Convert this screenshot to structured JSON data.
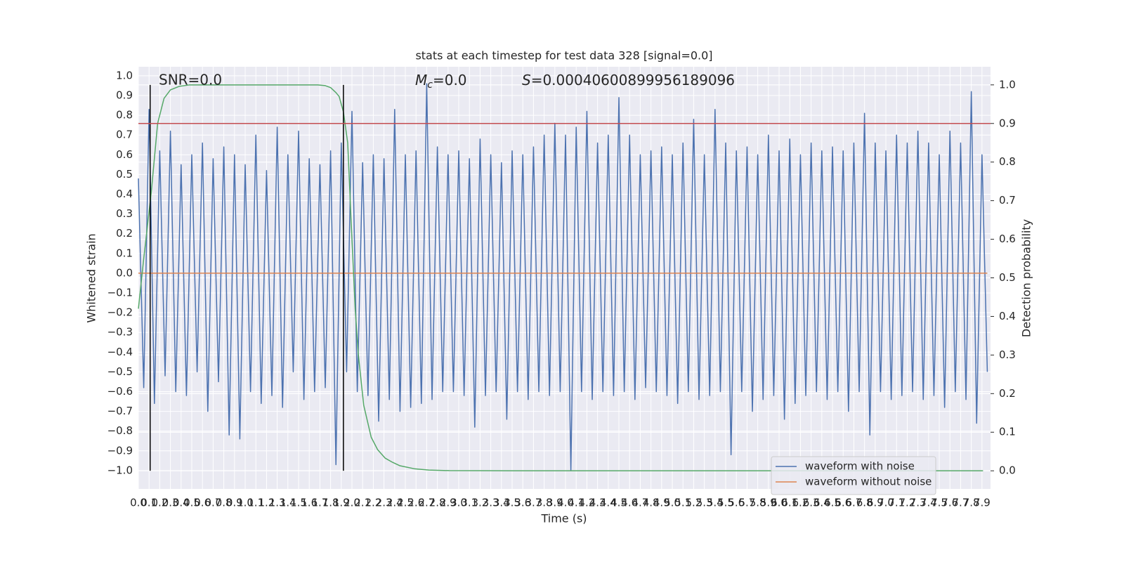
{
  "chart_data": {
    "type": "line",
    "title": "stats at each timestep for test data 328 [signal=0.0]",
    "xlabel": "Time (s)",
    "ylabel": "Whitened strain",
    "y2label": "Detection probability",
    "annotations": [
      {
        "text": "SNR=0.0"
      },
      {
        "symbol": "M",
        "subscript": "c",
        "text": "=0.0"
      },
      {
        "symbol": "S",
        "text": "=0.00040600899956189096"
      }
    ],
    "xlim": [
      0,
      7.98
    ],
    "ylim": [
      -1.093,
      1.046
    ],
    "y2lim": [
      -0.047,
      1.047
    ],
    "xticks": [
      {
        "value": 0,
        "label": "0.0"
      },
      {
        "value": 0.1,
        "label": "0.1"
      },
      {
        "value": 0.2,
        "label": "0.2"
      },
      {
        "value": 0.3,
        "label": "0.3"
      },
      {
        "value": 0.4,
        "label": "0.4"
      },
      {
        "value": 0.5,
        "label": "0.5"
      },
      {
        "value": 0.6,
        "label": "0.6"
      },
      {
        "value": 0.7,
        "label": "0.7"
      },
      {
        "value": 0.8,
        "label": "0.8"
      },
      {
        "value": 0.9,
        "label": "0.9"
      },
      {
        "value": 1,
        "label": "1.0"
      },
      {
        "value": 1.1,
        "label": "1.1"
      },
      {
        "value": 1.2,
        "label": "1.2"
      },
      {
        "value": 1.3,
        "label": "1.3"
      },
      {
        "value": 1.4,
        "label": "1.4"
      },
      {
        "value": 1.5,
        "label": "1.5"
      },
      {
        "value": 1.6,
        "label": "1.6"
      },
      {
        "value": 1.7,
        "label": "1.7"
      },
      {
        "value": 1.8,
        "label": "1.8"
      },
      {
        "value": 1.9,
        "label": "1.9"
      },
      {
        "value": 2,
        "label": "2.0"
      },
      {
        "value": 2.1,
        "label": "2.1"
      },
      {
        "value": 2.2,
        "label": "2.2"
      },
      {
        "value": 2.3,
        "label": "2.3"
      },
      {
        "value": 2.4,
        "label": "2.4"
      },
      {
        "value": 2.5,
        "label": "2.5"
      },
      {
        "value": 2.6,
        "label": "2.6"
      },
      {
        "value": 2.7,
        "label": "2.7"
      },
      {
        "value": 2.8,
        "label": "2.8"
      },
      {
        "value": 2.9,
        "label": "2.9"
      },
      {
        "value": 3,
        "label": "3.0"
      },
      {
        "value": 3.1,
        "label": "3.1"
      },
      {
        "value": 3.2,
        "label": "3.2"
      },
      {
        "value": 3.3,
        "label": "3.3"
      },
      {
        "value": 3.4,
        "label": "3.4"
      },
      {
        "value": 3.5,
        "label": "3.5"
      },
      {
        "value": 3.6,
        "label": "3.6"
      },
      {
        "value": 3.7,
        "label": "3.7"
      },
      {
        "value": 3.8,
        "label": "3.8"
      },
      {
        "value": 3.9,
        "label": "3.9"
      },
      {
        "value": 4,
        "label": "4.0"
      },
      {
        "value": 4.1,
        "label": "4.1"
      },
      {
        "value": 4.2,
        "label": "4.2"
      },
      {
        "value": 4.3,
        "label": "4.3"
      },
      {
        "value": 4.4,
        "label": "4.4"
      },
      {
        "value": 4.5,
        "label": "4.5"
      },
      {
        "value": 4.6,
        "label": "4.6"
      },
      {
        "value": 4.7,
        "label": "4.7"
      },
      {
        "value": 4.8,
        "label": "4.8"
      },
      {
        "value": 4.9,
        "label": "4.9"
      },
      {
        "value": 5,
        "label": "5.0"
      },
      {
        "value": 5.1,
        "label": "5.1"
      },
      {
        "value": 5.2,
        "label": "5.2"
      },
      {
        "value": 5.3,
        "label": "5.3"
      },
      {
        "value": 5.4,
        "label": "5.4"
      },
      {
        "value": 5.5,
        "label": "5.5"
      },
      {
        "value": 5.6,
        "label": "5.6"
      },
      {
        "value": 5.7,
        "label": "5.7"
      },
      {
        "value": 5.8,
        "label": "5.8"
      },
      {
        "value": 5.9,
        "label": "5.9"
      },
      {
        "value": 6,
        "label": "6.0"
      },
      {
        "value": 6.1,
        "label": "6.1"
      },
      {
        "value": 6.2,
        "label": "6.2"
      },
      {
        "value": 6.3,
        "label": "6.3"
      },
      {
        "value": 6.4,
        "label": "6.4"
      },
      {
        "value": 6.5,
        "label": "6.5"
      },
      {
        "value": 6.6,
        "label": "6.6"
      },
      {
        "value": 6.7,
        "label": "6.7"
      },
      {
        "value": 6.8,
        "label": "6.8"
      },
      {
        "value": 6.9,
        "label": "6.9"
      },
      {
        "value": 7,
        "label": "7.0"
      },
      {
        "value": 7.1,
        "label": "7.1"
      },
      {
        "value": 7.2,
        "label": "7.2"
      },
      {
        "value": 7.3,
        "label": "7.3"
      },
      {
        "value": 7.4,
        "label": "7.4"
      },
      {
        "value": 7.5,
        "label": "7.5"
      },
      {
        "value": 7.6,
        "label": "7.6"
      },
      {
        "value": 7.7,
        "label": "7.7"
      },
      {
        "value": 7.8,
        "label": "7.8"
      },
      {
        "value": 7.9,
        "label": "7.9"
      }
    ],
    "yticks": [
      {
        "value": -1,
        "label": "−1.0"
      },
      {
        "value": -0.9,
        "label": "−0.9"
      },
      {
        "value": -0.8,
        "label": "−0.8"
      },
      {
        "value": -0.7,
        "label": "−0.7"
      },
      {
        "value": -0.6,
        "label": "−0.6"
      },
      {
        "value": -0.5,
        "label": "−0.5"
      },
      {
        "value": -0.4,
        "label": "−0.4"
      },
      {
        "value": -0.3,
        "label": "−0.3"
      },
      {
        "value": -0.2,
        "label": "−0.2"
      },
      {
        "value": -0.1,
        "label": "−0.1"
      },
      {
        "value": 0,
        "label": "0.0"
      },
      {
        "value": 0.1,
        "label": "0.1"
      },
      {
        "value": 0.2,
        "label": "0.2"
      },
      {
        "value": 0.3,
        "label": "0.3"
      },
      {
        "value": 0.4,
        "label": "0.4"
      },
      {
        "value": 0.5,
        "label": "0.5"
      },
      {
        "value": 0.6,
        "label": "0.6"
      },
      {
        "value": 0.7,
        "label": "0.7"
      },
      {
        "value": 0.8,
        "label": "0.8"
      },
      {
        "value": 0.9,
        "label": "0.9"
      },
      {
        "value": 1,
        "label": "1.0"
      }
    ],
    "y2ticks": [
      {
        "value": 0,
        "label": "0.0"
      },
      {
        "value": 0.1,
        "label": "0.1"
      },
      {
        "value": 0.2,
        "label": "0.2"
      },
      {
        "value": 0.3,
        "label": "0.3"
      },
      {
        "value": 0.4,
        "label": "0.4"
      },
      {
        "value": 0.5,
        "label": "0.5"
      },
      {
        "value": 0.6,
        "label": "0.6"
      },
      {
        "value": 0.7,
        "label": "0.7"
      },
      {
        "value": 0.8,
        "label": "0.8"
      },
      {
        "value": 0.9,
        "label": "0.9"
      },
      {
        "value": 1,
        "label": "1.0"
      }
    ],
    "grid": true,
    "legend": "lower right",
    "series": [
      {
        "name": "waveform with noise",
        "color": "#4c72b0",
        "x": [
          0,
          0.05,
          0.1,
          0.15,
          0.2,
          0.25,
          0.3,
          0.35,
          0.4,
          0.45,
          0.5,
          0.55,
          0.6,
          0.65,
          0.7,
          0.75,
          0.8,
          0.85,
          0.9,
          0.95,
          1,
          1.05,
          1.1,
          1.15,
          1.2,
          1.25,
          1.3,
          1.35,
          1.4,
          1.45,
          1.5,
          1.55,
          1.6,
          1.65,
          1.7,
          1.75,
          1.8,
          1.85,
          1.9,
          1.95,
          2,
          2.05,
          2.1,
          2.15,
          2.2,
          2.25,
          2.3,
          2.35,
          2.4,
          2.45,
          2.5,
          2.55,
          2.6,
          2.65,
          2.7,
          2.75,
          2.8,
          2.85,
          2.9,
          2.95,
          3,
          3.05,
          3.1,
          3.15,
          3.2,
          3.25,
          3.3,
          3.35,
          3.4,
          3.45,
          3.5,
          3.55,
          3.6,
          3.65,
          3.7,
          3.75,
          3.8,
          3.85,
          3.9,
          3.95,
          4,
          4.05,
          4.1,
          4.15,
          4.2,
          4.25,
          4.3,
          4.35,
          4.4,
          4.45,
          4.5,
          4.55,
          4.6,
          4.65,
          4.7,
          4.75,
          4.8,
          4.85,
          4.9,
          4.95,
          5,
          5.05,
          5.1,
          5.15,
          5.2,
          5.25,
          5.3,
          5.35,
          5.4,
          5.45,
          5.5,
          5.55,
          5.6,
          5.65,
          5.7,
          5.75,
          5.8,
          5.85,
          5.9,
          5.95,
          6,
          6.05,
          6.1,
          6.15,
          6.2,
          6.25,
          6.3,
          6.35,
          6.4,
          6.45,
          6.5,
          6.55,
          6.6,
          6.65,
          6.7,
          6.75,
          6.8,
          6.85,
          6.9,
          6.95,
          7,
          7.05,
          7.1,
          7.15,
          7.2,
          7.25,
          7.3,
          7.35,
          7.4,
          7.45,
          7.5,
          7.55,
          7.6,
          7.65,
          7.7,
          7.75,
          7.8,
          7.85,
          7.9,
          7.95
        ],
        "values": [
          0.48,
          -0.58,
          0.83,
          -0.66,
          0.62,
          -0.52,
          0.72,
          -0.6,
          0.55,
          -0.62,
          0.6,
          -0.5,
          0.66,
          -0.7,
          0.58,
          -0.55,
          0.64,
          -0.82,
          0.6,
          -0.84,
          0.55,
          -0.6,
          0.7,
          -0.66,
          0.52,
          -0.62,
          0.74,
          -0.68,
          0.6,
          -0.5,
          0.72,
          -0.64,
          0.58,
          -0.6,
          0.55,
          -0.58,
          0.62,
          -0.97,
          0.66,
          -0.5,
          0.82,
          -0.6,
          0.56,
          -0.62,
          0.6,
          -0.75,
          0.58,
          -0.64,
          0.83,
          -0.7,
          0.6,
          -0.68,
          0.62,
          -0.66,
          0.96,
          -0.64,
          0.64,
          -0.6,
          0.6,
          -0.6,
          0.62,
          -0.62,
          0.58,
          -0.78,
          0.68,
          -0.62,
          0.6,
          -0.6,
          0.56,
          -0.74,
          0.62,
          -0.6,
          0.6,
          -0.64,
          0.64,
          -0.6,
          0.7,
          -0.62,
          0.76,
          -0.6,
          0.7,
          -1.0,
          0.74,
          -0.6,
          0.82,
          -0.64,
          0.66,
          -0.6,
          0.7,
          -0.62,
          0.89,
          -0.6,
          0.7,
          -0.64,
          0.6,
          -0.58,
          0.62,
          -0.6,
          0.64,
          -0.62,
          0.6,
          -0.66,
          0.66,
          -0.6,
          0.78,
          -0.64,
          0.6,
          -0.62,
          0.83,
          -0.6,
          0.66,
          -0.92,
          0.62,
          -0.6,
          0.64,
          -0.7,
          0.6,
          -0.64,
          0.7,
          -0.62,
          0.62,
          -0.74,
          0.68,
          -0.66,
          0.6,
          -0.62,
          0.66,
          -0.6,
          0.62,
          -0.64,
          0.64,
          -0.6,
          0.62,
          -0.7,
          0.66,
          -0.6,
          0.81,
          -0.82,
          0.66,
          -0.6,
          0.62,
          -0.64,
          0.7,
          -0.62,
          0.66,
          -0.6,
          0.72,
          -0.64,
          0.66,
          -0.62,
          0.6,
          -0.68,
          0.72,
          -0.6,
          0.66,
          -0.64,
          0.92,
          -0.76,
          0.6,
          -0.5
        ]
      },
      {
        "name": "waveform without noise",
        "color": "#dd8452",
        "x": [
          0,
          7.95
        ],
        "values": [
          0,
          0
        ]
      },
      {
        "color": "#55a868",
        "axis": "y2",
        "x": [
          0,
          0.05,
          0.12,
          0.18,
          0.24,
          0.3,
          0.38,
          0.48,
          1.0,
          1.5,
          1.68,
          1.75,
          1.8,
          1.85,
          1.88,
          1.92,
          1.96,
          2.0,
          2.03,
          2.06,
          2.11,
          2.18,
          2.24,
          2.31,
          2.38,
          2.45,
          2.59,
          2.72,
          2.91,
          3.5,
          7.91
        ],
        "values": [
          0.42,
          0.55,
          0.72,
          0.9,
          0.965,
          0.987,
          0.996,
          1.0,
          1.0,
          1.0,
          1.0,
          0.998,
          0.993,
          0.98,
          0.97,
          0.93,
          0.85,
          0.6,
          0.42,
          0.3,
          0.17,
          0.087,
          0.055,
          0.033,
          0.022,
          0.013,
          0.005,
          0.002,
          0.0005,
          0,
          0
        ]
      }
    ],
    "vlines": {
      "x": [
        0.11,
        1.92
      ],
      "ymin": 0,
      "ymax": 1,
      "axis": "y2",
      "color": "#000000"
    },
    "hline": {
      "y": 0.9,
      "axis": "y2",
      "color": "#c44e52"
    }
  }
}
